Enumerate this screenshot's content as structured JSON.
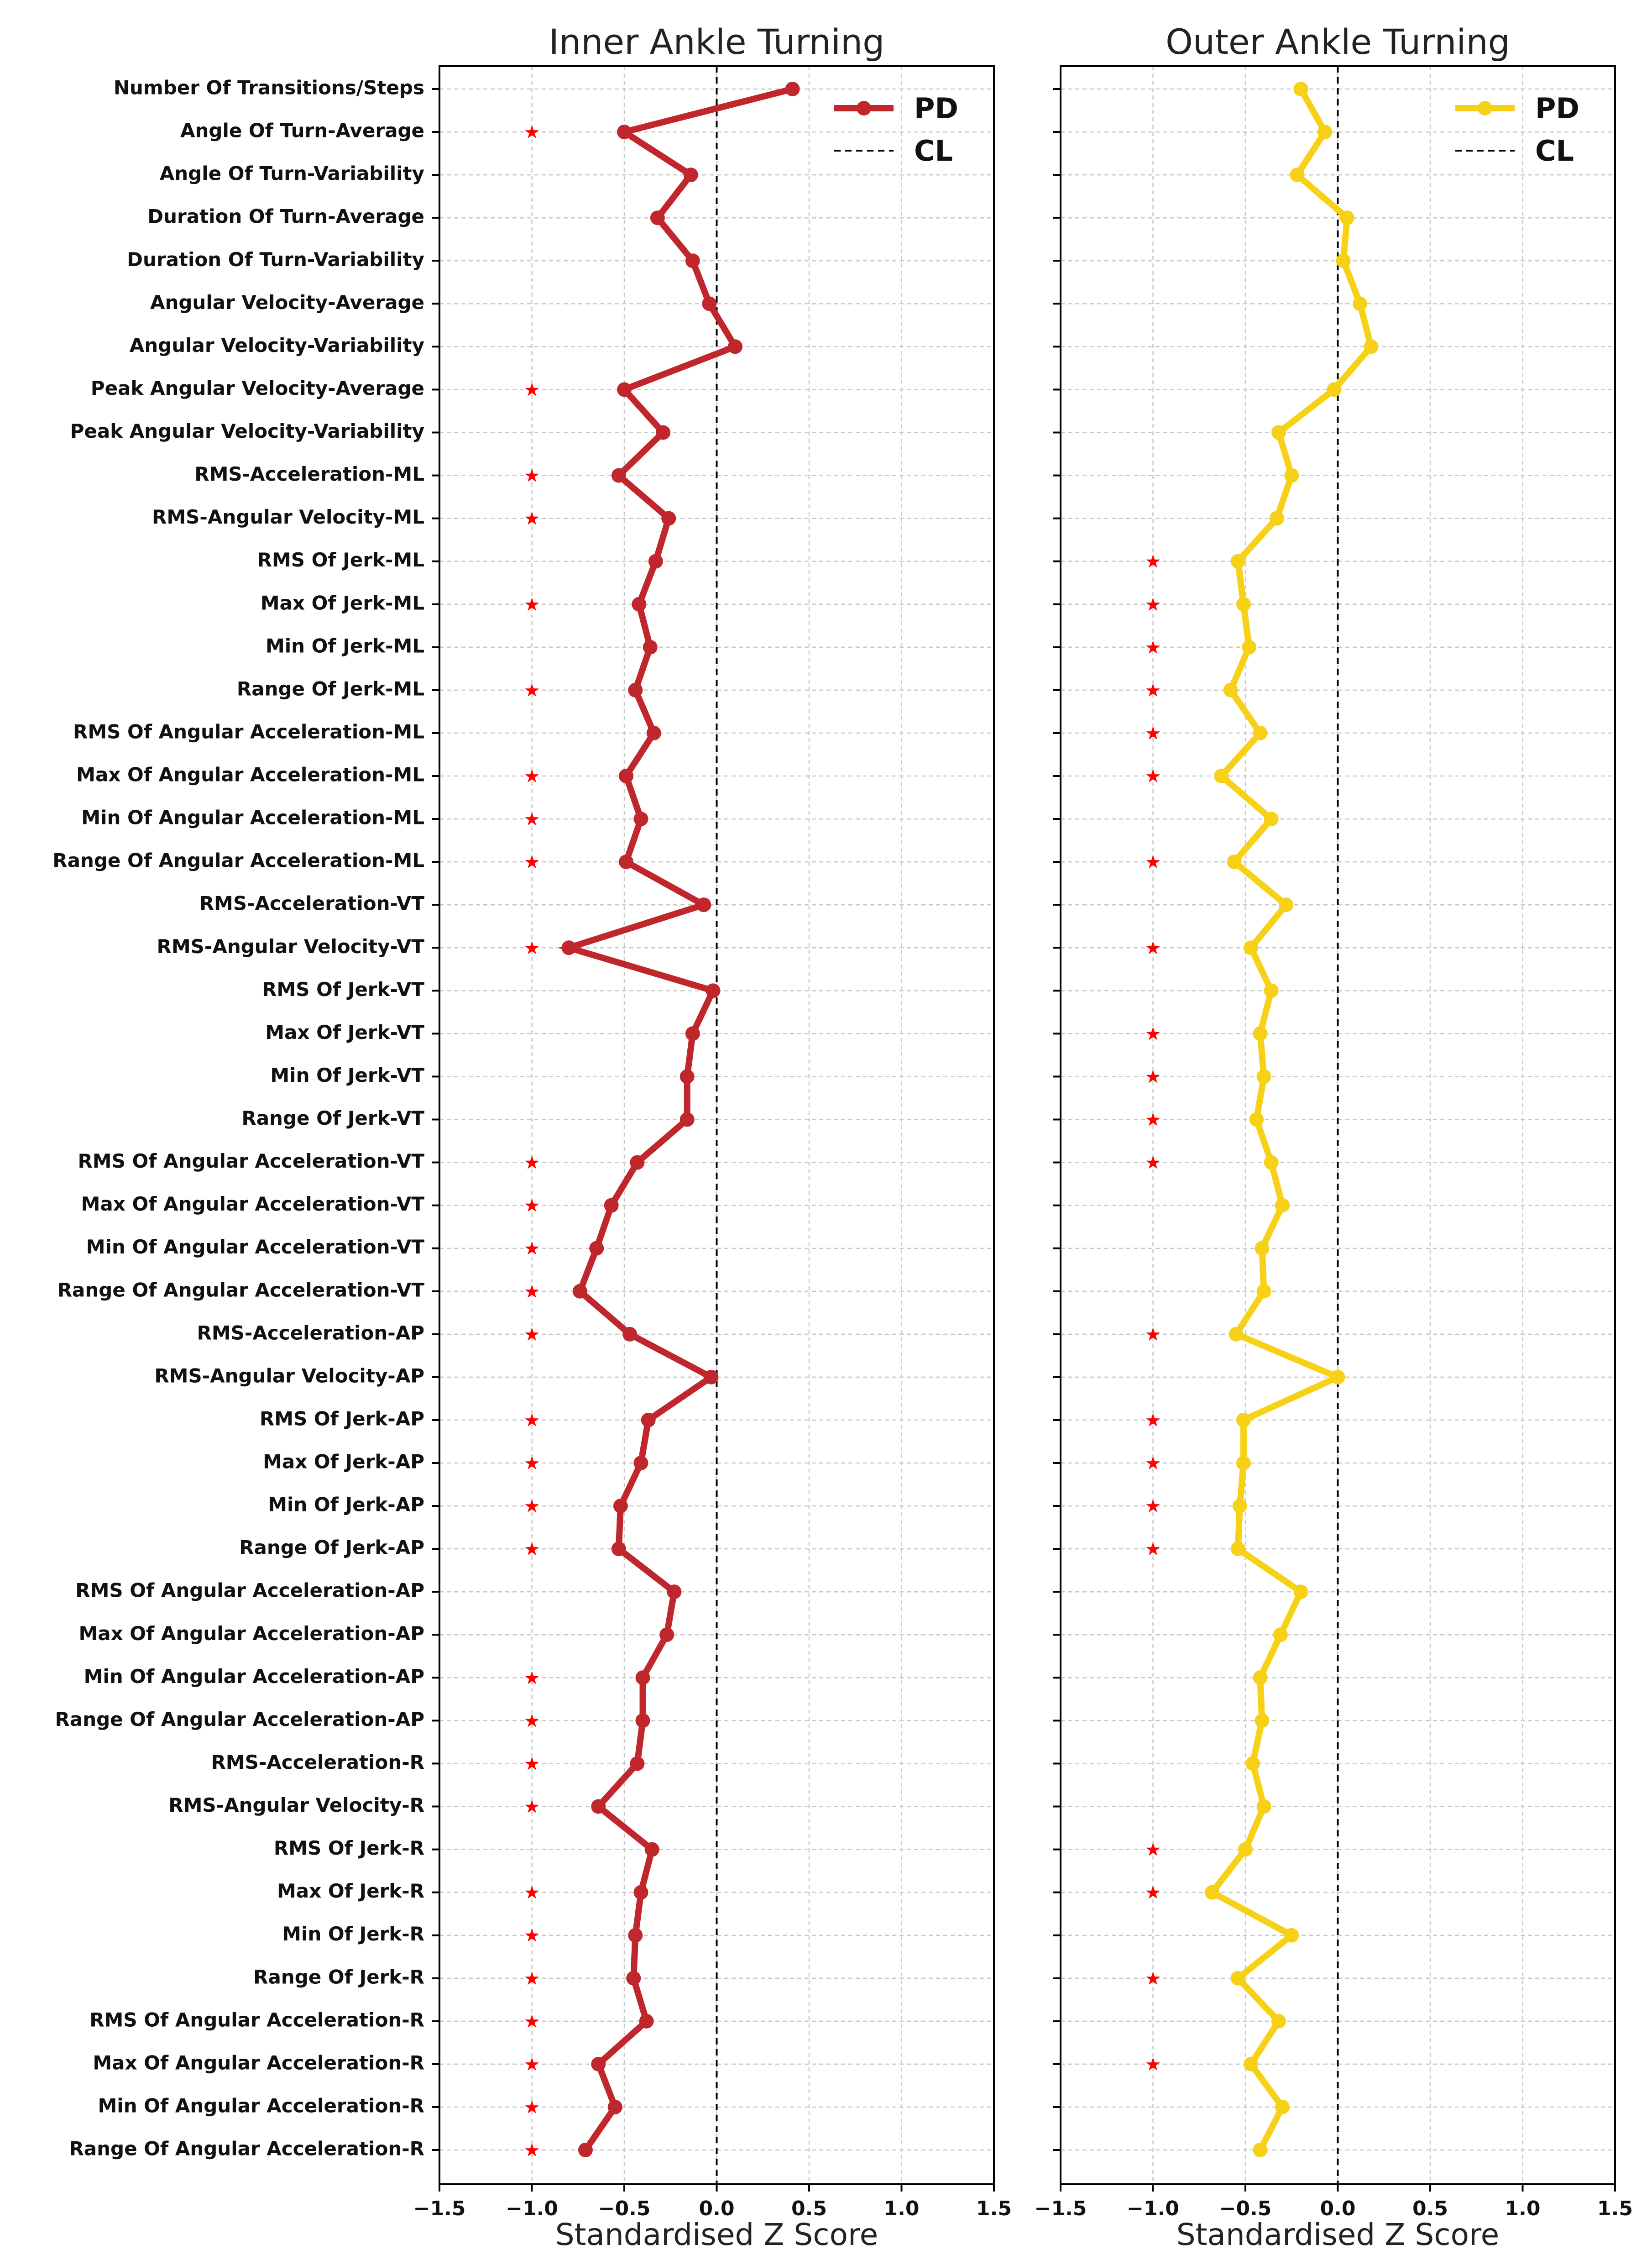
{
  "chart_data": {
    "type": "line",
    "xlabel": "Standardised Z Score",
    "xlim": [
      -1.5,
      1.5
    ],
    "xticks": [
      -1.5,
      -1.0,
      -0.5,
      0.0,
      0.5,
      1.0,
      1.5
    ],
    "xtick_labels": [
      "−1.5",
      "−1.0",
      "−0.5",
      "0.0",
      "0.5",
      "1.0",
      "1.5"
    ],
    "grid": true,
    "legend_position": "top-right",
    "reference_line": {
      "label": "CL",
      "x": 0
    },
    "significance_marker": "★",
    "categories": [
      "Number Of Transitions/Steps",
      "Angle Of Turn-Average",
      "Angle Of Turn-Variability",
      "Duration Of Turn-Average",
      "Duration Of Turn-Variability",
      "Angular Velocity-Average",
      "Angular Velocity-Variability",
      "Peak Angular Velocity-Average",
      "Peak Angular Velocity-Variability",
      "RMS-Acceleration-ML",
      "RMS-Angular Velocity-ML",
      "RMS Of Jerk-ML",
      "Max Of Jerk-ML",
      "Min Of Jerk-ML",
      "Range Of Jerk-ML",
      "RMS Of Angular Acceleration-ML",
      "Max Of Angular Acceleration-ML",
      "Min Of Angular Acceleration-ML",
      "Range Of Angular Acceleration-ML",
      "RMS-Acceleration-VT",
      "RMS-Angular Velocity-VT",
      "RMS Of Jerk-VT",
      "Max Of Jerk-VT",
      "Min Of Jerk-VT",
      "Range Of Jerk-VT",
      "RMS Of Angular Acceleration-VT",
      "Max Of Angular Acceleration-VT",
      "Min Of Angular Acceleration-VT",
      "Range Of Angular Acceleration-VT",
      "RMS-Acceleration-AP",
      "RMS-Angular Velocity-AP",
      "RMS Of Jerk-AP",
      "Max Of Jerk-AP",
      "Min Of Jerk-AP",
      "Range Of Jerk-AP",
      "RMS Of Angular Acceleration-AP",
      "Max Of Angular Acceleration-AP",
      "Min Of Angular Acceleration-AP",
      "Range Of Angular Acceleration-AP",
      "RMS-Acceleration-R",
      "RMS-Angular Velocity-R",
      "RMS Of Jerk-R",
      "Max Of Jerk-R",
      "Min Of Jerk-R",
      "Range Of Jerk-R",
      "RMS Of Angular Acceleration-R",
      "Max Of Angular Acceleration-R",
      "Min Of Angular Acceleration-R",
      "Range Of Angular Acceleration-R"
    ],
    "panels": [
      {
        "title": "Inner Ankle Turning",
        "series": [
          {
            "name": "PD",
            "color": "#c0272d",
            "values": [
              0.41,
              -0.5,
              -0.14,
              -0.32,
              -0.13,
              -0.04,
              0.1,
              -0.5,
              -0.29,
              -0.53,
              -0.26,
              -0.33,
              -0.42,
              -0.36,
              -0.44,
              -0.34,
              -0.49,
              -0.41,
              -0.49,
              -0.07,
              -0.8,
              -0.02,
              -0.13,
              -0.16,
              -0.16,
              -0.43,
              -0.57,
              -0.65,
              -0.74,
              -0.47,
              -0.03,
              -0.37,
              -0.41,
              -0.52,
              -0.53,
              -0.23,
              -0.27,
              -0.4,
              -0.4,
              -0.43,
              -0.64,
              -0.35,
              -0.41,
              -0.44,
              -0.45,
              -0.38,
              -0.64,
              -0.55,
              -0.71
            ]
          }
        ],
        "significant": [
          false,
          true,
          false,
          false,
          false,
          false,
          false,
          true,
          false,
          true,
          true,
          false,
          true,
          false,
          true,
          false,
          true,
          true,
          true,
          false,
          true,
          false,
          false,
          false,
          false,
          true,
          true,
          true,
          true,
          true,
          false,
          true,
          true,
          true,
          true,
          false,
          false,
          true,
          true,
          true,
          true,
          false,
          true,
          true,
          true,
          true,
          true,
          true,
          true
        ]
      },
      {
        "title": "Outer Ankle Turning",
        "series": [
          {
            "name": "PD",
            "color": "#f7d117",
            "values": [
              -0.2,
              -0.07,
              -0.22,
              0.05,
              0.03,
              0.12,
              0.18,
              -0.02,
              -0.32,
              -0.25,
              -0.33,
              -0.54,
              -0.51,
              -0.48,
              -0.58,
              -0.42,
              -0.63,
              -0.36,
              -0.56,
              -0.28,
              -0.47,
              -0.36,
              -0.42,
              -0.4,
              -0.44,
              -0.36,
              -0.3,
              -0.41,
              -0.4,
              -0.55,
              0.0,
              -0.51,
              -0.51,
              -0.53,
              -0.54,
              -0.2,
              -0.31,
              -0.42,
              -0.41,
              -0.46,
              -0.4,
              -0.5,
              -0.68,
              -0.25,
              -0.54,
              -0.32,
              -0.47,
              -0.3,
              -0.42
            ]
          }
        ],
        "significant": [
          false,
          false,
          false,
          false,
          false,
          false,
          false,
          false,
          false,
          false,
          false,
          true,
          true,
          true,
          true,
          true,
          true,
          false,
          true,
          false,
          true,
          false,
          true,
          true,
          true,
          true,
          false,
          false,
          false,
          true,
          false,
          true,
          true,
          true,
          true,
          false,
          false,
          false,
          false,
          false,
          false,
          true,
          true,
          false,
          true,
          false,
          true,
          false,
          false
        ]
      }
    ],
    "legend": [
      {
        "label": "PD",
        "style": "line-marker"
      },
      {
        "label": "CL",
        "style": "dashed"
      }
    ]
  }
}
